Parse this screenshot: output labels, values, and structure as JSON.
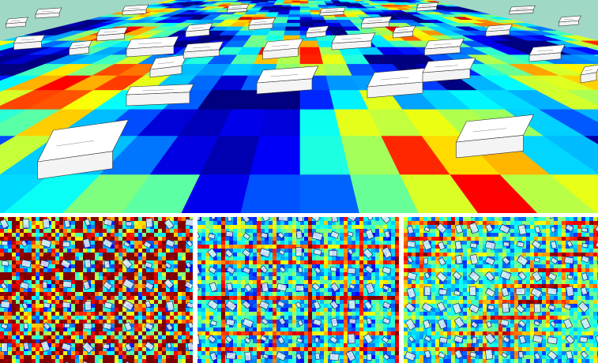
{
  "figure": {
    "description_palette": [
      "#00007f",
      "#0000ff",
      "#007fff",
      "#00ffff",
      "#7fff7f",
      "#ffff00",
      "#ff7f00",
      "#ff0000",
      "#7f0000"
    ],
    "panels": [
      {
        "id": "perspective",
        "kind": "3d-heatmap-with-buildings"
      },
      {
        "id": "top-down-1",
        "kind": "top-down-heatmap",
        "pattern": "ring-lattice"
      },
      {
        "id": "top-down-2",
        "kind": "top-down-heatmap",
        "pattern": "irregular-lattice"
      },
      {
        "id": "top-down-3",
        "kind": "top-down-heatmap",
        "pattern": "dense-lattice"
      }
    ]
  }
}
